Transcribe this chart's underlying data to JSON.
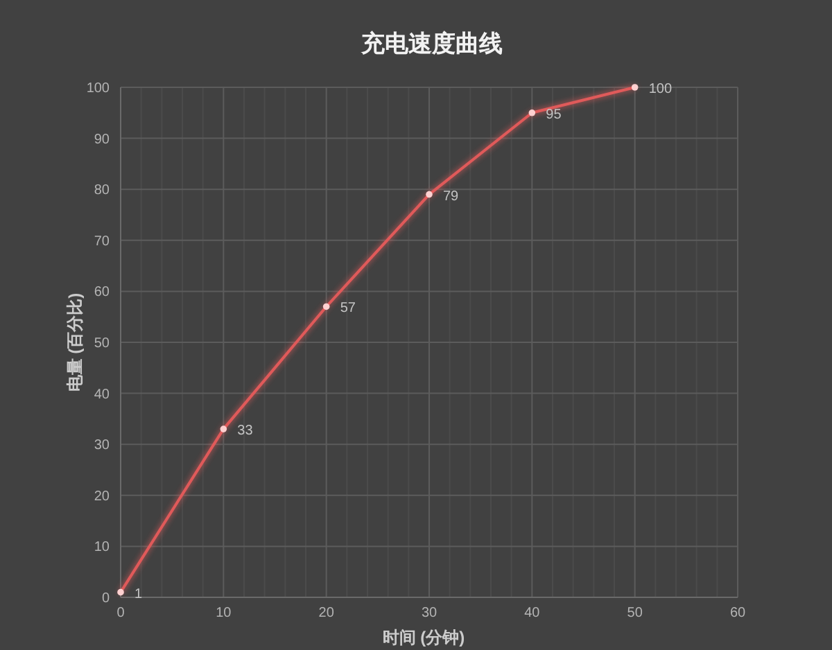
{
  "chart_data": {
    "type": "line",
    "title": "充电速度曲线",
    "xlabel": "时间 (分钟)",
    "ylabel": "电量 (百分比)",
    "x": [
      0,
      10,
      20,
      30,
      40,
      50
    ],
    "series": [
      {
        "color": "#e05a5a",
        "values": [
          1,
          33,
          57,
          79,
          95,
          100
        ]
      }
    ],
    "xlim": [
      0,
      60
    ],
    "ylim": [
      0,
      100
    ],
    "xticks": [
      0,
      {
        "value": 2,
        "label": null
      },
      {
        "value": 4,
        "label": null
      },
      {
        "value": 6,
        "label": null
      },
      {
        "value": 8,
        "label": null
      },
      10,
      {
        "value": 12,
        "label": null
      },
      {
        "value": 14,
        "label": null
      },
      {
        "value": 16,
        "label": null
      },
      {
        "value": 18,
        "label": null
      },
      20,
      {
        "value": 22,
        "label": null
      },
      {
        "value": 24,
        "label": null
      },
      {
        "value": 26,
        "label": null
      },
      {
        "value": 28,
        "label": null
      },
      30,
      {
        "value": 32,
        "label": null
      },
      {
        "value": 34,
        "label": null
      },
      {
        "value": 36,
        "label": null
      },
      {
        "value": 38,
        "label": null
      },
      40,
      {
        "value": 42,
        "label": null
      },
      {
        "value": 44,
        "label": null
      },
      {
        "value": 46,
        "label": null
      },
      {
        "value": 48,
        "label": null
      },
      50,
      {
        "value": 52,
        "label": null
      },
      {
        "value": 54,
        "label": null
      },
      {
        "value": 56,
        "label": null
      },
      {
        "value": 58,
        "label": null
      },
      60
    ],
    "yticks": [
      0,
      10,
      20,
      30,
      40,
      50,
      60,
      70,
      80,
      90,
      100
    ],
    "grid": true,
    "marker": "circle",
    "data_labels": true
  }
}
